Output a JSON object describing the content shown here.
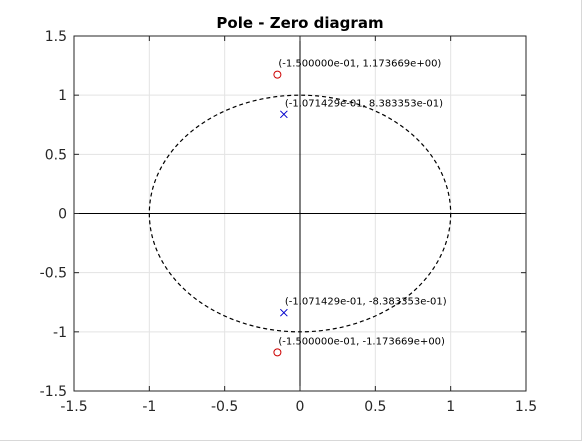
{
  "chart_data": {
    "type": "scatter",
    "title": "Pole - Zero diagram",
    "xlabel": "",
    "ylabel": "",
    "xlim": [
      -1.5,
      1.5
    ],
    "ylim": [
      -1.5,
      1.5
    ],
    "grid": true,
    "xticks": [
      -1.5,
      -1,
      -0.5,
      0,
      0.5,
      1,
      1.5
    ],
    "xtick_labels": [
      "-1.5",
      "-1",
      "-0.5",
      "0",
      "0.5",
      "1",
      "1.5"
    ],
    "yticks": [
      -1.5,
      -1,
      -0.5,
      0,
      0.5,
      1,
      1.5
    ],
    "ytick_labels": [
      "-1.5",
      "-1",
      "-0.5",
      "0",
      "0.5",
      "1",
      "1.5"
    ],
    "unit_circle": {
      "radius": 1,
      "style": "dashed",
      "color": "#000000"
    },
    "axes_lines": {
      "x": 0,
      "y": 0,
      "color": "#000000"
    },
    "series": [
      {
        "marker": "o",
        "color": "#cc0000",
        "points": [
          {
            "x": -0.15,
            "y": 1.173669,
            "label": "(-1.500000e-01, 1.173669e+00)",
            "label_pos": "above"
          },
          {
            "x": -0.15,
            "y": -1.173669,
            "label": "(-1.500000e-01, -1.173669e+00)",
            "label_pos": "above"
          }
        ]
      },
      {
        "marker": "x",
        "color": "#0000cc",
        "points": [
          {
            "x": -0.1071429,
            "y": 0.8383353,
            "label": "(-1.071429e-01, 8.383353e-01)",
            "label_pos": "above"
          },
          {
            "x": -0.1071429,
            "y": -0.8383353,
            "label": "(-1.071429e-01, -8.383353e-01)",
            "label_pos": "above"
          }
        ]
      }
    ]
  }
}
